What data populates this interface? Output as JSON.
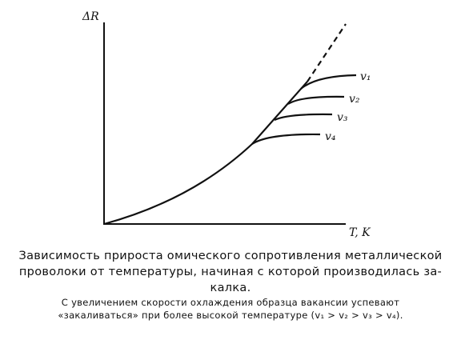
{
  "figure": {
    "y_axis_label": "ΔR",
    "x_axis_label": "T, K",
    "curve_labels": [
      "v₁",
      "v₂",
      "v₃",
      "v₄"
    ]
  },
  "caption": {
    "lines": [
      "Зависимость прироста омического сопротивления металлической",
      "проволоки от температуры, начиная с которой производилась за-",
      "калка."
    ]
  },
  "note": {
    "lines": [
      "С увеличением скорости охлаждения образца вакансии успевают",
      "«закаливаться» при более высокой температуре (v₁ > v₂ > v₃ > v₄)."
    ]
  }
}
